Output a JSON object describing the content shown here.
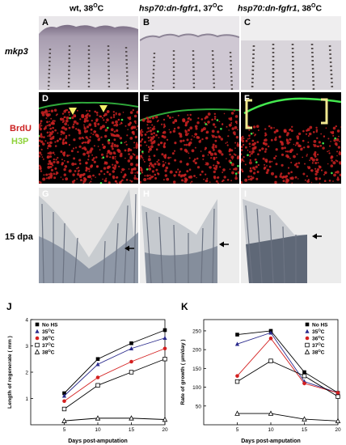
{
  "columns": [
    {
      "prefix": "wt, 38",
      "sup": "O",
      "suffix": "C",
      "italic": false
    },
    {
      "prefix": "hsp70:dn-fgfr1",
      "mid": ", 37",
      "sup": "O",
      "suffix": "C",
      "italic": true
    },
    {
      "prefix": "hsp70:dn-fgfr1",
      "mid": ", 38",
      "sup": "O",
      "suffix": "C",
      "italic": true
    }
  ],
  "col_text": [
    "wt, 38",
    "hsp70:dn-fgfr1",
    ", 37",
    "hsp70:dn-fgfr1",
    ", 38"
  ],
  "sup_o": "O",
  "deg_c": "C",
  "row_labels": {
    "mkp3": "mkp3",
    "brdu": "BrdU",
    "h3p": "H3P",
    "dpa": "15 dpa"
  },
  "panel_letters": [
    "A",
    "B",
    "C",
    "D",
    "E",
    "F",
    "G",
    "H",
    "I"
  ],
  "graph_letters": [
    "J",
    "K"
  ],
  "colors": {
    "brdu": "#cc2222",
    "h3p": "#8fd23a",
    "green_signal": "#3ee04a",
    "arrowhead": "#f4ef6a",
    "bracket": "#f0e890"
  },
  "chart_data": [
    {
      "type": "line",
      "title": "",
      "xlabel": "Days post-amputation",
      "ylabel": "Length of regenerate ( mm )",
      "x": [
        5,
        10,
        15,
        20
      ],
      "xticks": [
        5,
        10,
        15,
        20
      ],
      "yticks": [
        1,
        2,
        3,
        4
      ],
      "xlim": [
        0,
        20
      ],
      "ylim": [
        0,
        4
      ],
      "legend": "top-left",
      "series": [
        {
          "name": "No HS",
          "marker": "filled-square",
          "color": "#000000",
          "values": [
            1.2,
            2.5,
            3.1,
            3.6
          ]
        },
        {
          "name": "35",
          "marker": "filled-triangle",
          "color": "#2a2a8c",
          "values": [
            1.1,
            2.3,
            2.9,
            3.3
          ]
        },
        {
          "name": "36",
          "marker": "filled-circle",
          "color": "#d42020",
          "values": [
            0.9,
            1.8,
            2.4,
            2.9
          ]
        },
        {
          "name": "37",
          "marker": "open-square",
          "color": "#000000",
          "values": [
            0.6,
            1.5,
            2.0,
            2.5
          ]
        },
        {
          "name": "38",
          "marker": "open-triangle",
          "color": "#000000",
          "values": [
            0.15,
            0.25,
            0.25,
            0.2
          ]
        }
      ]
    },
    {
      "type": "line",
      "title": "",
      "xlabel": "Days post-amputation",
      "ylabel": "Rate of growth ( µm/day )",
      "x": [
        5,
        10,
        15,
        20
      ],
      "xticks": [
        5,
        10,
        15,
        20
      ],
      "yticks": [
        50,
        100,
        150,
        200,
        250
      ],
      "xlim": [
        0,
        20
      ],
      "ylim": [
        0,
        280
      ],
      "legend": "top-right",
      "series": [
        {
          "name": "No HS",
          "marker": "filled-square",
          "color": "#000000",
          "values": [
            240,
            250,
            140,
            85
          ]
        },
        {
          "name": "35",
          "marker": "filled-triangle",
          "color": "#2a2a8c",
          "values": [
            215,
            245,
            115,
            85
          ]
        },
        {
          "name": "36",
          "marker": "filled-circle",
          "color": "#d42020",
          "values": [
            130,
            230,
            110,
            85
          ]
        },
        {
          "name": "37",
          "marker": "open-square",
          "color": "#000000",
          "values": [
            115,
            170,
            130,
            75
          ]
        },
        {
          "name": "38",
          "marker": "open-triangle",
          "color": "#000000",
          "values": [
            30,
            30,
            15,
            10
          ]
        }
      ]
    }
  ]
}
